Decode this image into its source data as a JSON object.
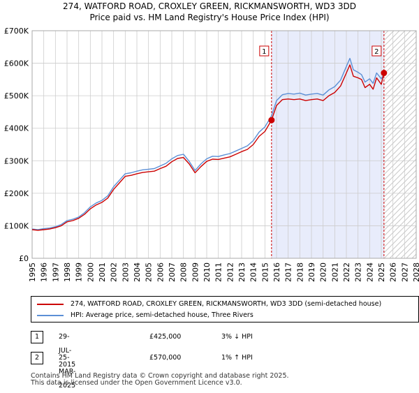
{
  "title_line1": "274, WATFORD ROAD, CROXLEY GREEN, RICKMANSWORTH, WD3 3DD",
  "title_line2": "Price paid vs. HM Land Registry's House Price Index (HPI)",
  "chart_data": {
    "type": "line",
    "x_range": [
      1995,
      2028
    ],
    "ylim": [
      0,
      700000
    ],
    "y_ticks": [
      {
        "value": 0,
        "label": "£0"
      },
      {
        "value": 100000,
        "label": "£100K"
      },
      {
        "value": 200000,
        "label": "£200K"
      },
      {
        "value": 300000,
        "label": "£300K"
      },
      {
        "value": 400000,
        "label": "£400K"
      },
      {
        "value": 500000,
        "label": "£500K"
      },
      {
        "value": 600000,
        "label": "£600K"
      },
      {
        "value": 700000,
        "label": "£700K"
      }
    ],
    "x_ticks": [
      "1995",
      "1996",
      "1997",
      "1998",
      "1999",
      "2000",
      "2001",
      "2002",
      "2003",
      "2004",
      "2005",
      "2006",
      "2007",
      "2008",
      "2009",
      "2010",
      "2011",
      "2012",
      "2013",
      "2014",
      "2015",
      "2016",
      "2017",
      "2018",
      "2019",
      "2020",
      "2021",
      "2022",
      "2023",
      "2024",
      "2025",
      "2026",
      "2027",
      "2028"
    ],
    "grid": true,
    "shaded_period": [
      2015.57,
      2025.23
    ],
    "hatched_from": 2025.23,
    "colors": {
      "property": "#cc0000",
      "hpi": "#5b8fd6",
      "shade": "#e8ecfb",
      "grid": "#cccccc"
    },
    "series": [
      {
        "name": "274, WATFORD ROAD, CROXLEY GREEN, RICKMANSWORTH, WD3 3DD (semi-detached house)",
        "color": "#cc0000",
        "x": [
          1995.0,
          1995.5,
          1996.0,
          1996.5,
          1997.0,
          1997.5,
          1998.0,
          1998.5,
          1999.0,
          1999.5,
          2000.0,
          2000.5,
          2001.0,
          2001.5,
          2002.0,
          2002.5,
          2003.0,
          2003.5,
          2004.0,
          2004.5,
          2005.0,
          2005.5,
          2006.0,
          2006.5,
          2007.0,
          2007.5,
          2008.0,
          2008.5,
          2009.0,
          2009.5,
          2010.0,
          2010.5,
          2011.0,
          2011.5,
          2012.0,
          2012.5,
          2013.0,
          2013.5,
          2014.0,
          2014.5,
          2015.0,
          2015.57,
          2016.0,
          2016.5,
          2017.0,
          2017.5,
          2018.0,
          2018.5,
          2019.0,
          2019.5,
          2020.0,
          2020.5,
          2021.0,
          2021.5,
          2022.0,
          2022.3,
          2022.6,
          2023.0,
          2023.3,
          2023.6,
          2024.0,
          2024.3,
          2024.6,
          2025.0,
          2025.23
        ],
        "values": [
          88000,
          86000,
          88000,
          90000,
          94000,
          100000,
          112000,
          116000,
          123000,
          135000,
          152000,
          164000,
          172000,
          185000,
          212000,
          232000,
          252000,
          255000,
          260000,
          264000,
          266000,
          268000,
          276000,
          283000,
          297000,
          307000,
          310000,
          290000,
          263000,
          282000,
          298000,
          305000,
          304000,
          308000,
          312000,
          320000,
          328000,
          335000,
          350000,
          375000,
          390000,
          425000,
          470000,
          488000,
          490000,
          488000,
          490000,
          485000,
          488000,
          490000,
          485000,
          500000,
          510000,
          530000,
          570000,
          595000,
          560000,
          555000,
          550000,
          525000,
          535000,
          520000,
          555000,
          535000,
          570000
        ]
      },
      {
        "name": "HPI: Average price, semi-detached house, Three Rivers",
        "color": "#5b8fd6",
        "x": [
          1995.0,
          1995.5,
          1996.0,
          1996.5,
          1997.0,
          1997.5,
          1998.0,
          1998.5,
          1999.0,
          1999.5,
          2000.0,
          2000.5,
          2001.0,
          2001.5,
          2002.0,
          2002.5,
          2003.0,
          2003.5,
          2004.0,
          2004.5,
          2005.0,
          2005.5,
          2006.0,
          2006.5,
          2007.0,
          2007.5,
          2008.0,
          2008.5,
          2009.0,
          2009.5,
          2010.0,
          2010.5,
          2011.0,
          2011.5,
          2012.0,
          2012.5,
          2013.0,
          2013.5,
          2014.0,
          2014.5,
          2015.0,
          2015.57,
          2016.0,
          2016.5,
          2017.0,
          2017.5,
          2018.0,
          2018.5,
          2019.0,
          2019.5,
          2020.0,
          2020.5,
          2021.0,
          2021.5,
          2022.0,
          2022.3,
          2022.6,
          2023.0,
          2023.3,
          2023.6,
          2024.0,
          2024.3,
          2024.6,
          2025.0,
          2025.23
        ],
        "values": [
          90000,
          88000,
          91000,
          93000,
          97000,
          104000,
          116000,
          120000,
          127000,
          140000,
          158000,
          170000,
          178000,
          192000,
          220000,
          240000,
          260000,
          263000,
          268000,
          272000,
          274000,
          276000,
          284000,
          292000,
          306000,
          316000,
          320000,
          298000,
          270000,
          290000,
          306000,
          314000,
          313000,
          318000,
          322000,
          330000,
          338000,
          346000,
          362000,
          388000,
          404000,
          438000,
          485000,
          503000,
          507000,
          505000,
          508000,
          502000,
          505000,
          507000,
          502000,
          518000,
          528000,
          548000,
          590000,
          615000,
          580000,
          572000,
          565000,
          542000,
          552000,
          538000,
          570000,
          552000,
          565000
        ]
      }
    ],
    "annotations": [
      {
        "label": "1",
        "x": 2015.57,
        "value": 425000
      },
      {
        "label": "2",
        "x": 2025.23,
        "value": 570000
      }
    ]
  },
  "legend": {
    "property": "274, WATFORD ROAD, CROXLEY GREEN, RICKMANSWORTH, WD3 3DD (semi-detached house)",
    "hpi": "HPI: Average price, semi-detached house, Three Rivers"
  },
  "sales": [
    {
      "num": "1",
      "date": "29-JUL-2015",
      "price": "£425,000",
      "pct": "3% ↓ HPI"
    },
    {
      "num": "2",
      "date": "25-MAR-2025",
      "price": "£570,000",
      "pct": "1% ↑ HPI"
    }
  ],
  "footer_line1": "Contains HM Land Registry data © Crown copyright and database right 2025.",
  "footer_line2": "This data is licensed under the Open Government Licence v3.0."
}
